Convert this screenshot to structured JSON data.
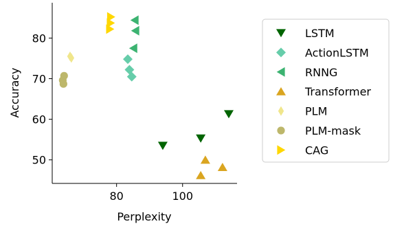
{
  "chart_data": {
    "type": "scatter",
    "xlabel": "Perplexity",
    "ylabel": "Accuracy",
    "xlim": [
      60.5,
      116.5
    ],
    "ylim": [
      44.2,
      88.7
    ],
    "x_ticks": [
      {
        "v": 80,
        "label": "80"
      },
      {
        "v": 100,
        "label": "100"
      }
    ],
    "y_ticks": [
      {
        "v": 50,
        "label": "50"
      },
      {
        "v": 60,
        "label": "60"
      },
      {
        "v": 70,
        "label": "70"
      },
      {
        "v": 80,
        "label": "80"
      }
    ],
    "legend_position": "right",
    "series": [
      {
        "name": "LSTM",
        "marker": "triangle-down",
        "color": "#006400",
        "points": [
          [
            94.0,
            53.5
          ],
          [
            105.5,
            55.3
          ],
          [
            114.0,
            61.3
          ]
        ]
      },
      {
        "name": "ActionLSTM",
        "marker": "diamond",
        "color": "#66cdaa",
        "points": [
          [
            83.4,
            74.8
          ],
          [
            83.9,
            72.2
          ],
          [
            84.6,
            70.5
          ]
        ]
      },
      {
        "name": "RNNG",
        "marker": "triangle-left",
        "color": "#3cb371",
        "points": [
          [
            85.5,
            84.4
          ],
          [
            85.7,
            81.8
          ],
          [
            85.1,
            77.5
          ]
        ]
      },
      {
        "name": "Transformer",
        "marker": "triangle-up",
        "color": "#daa520",
        "points": [
          [
            106.9,
            50.0
          ],
          [
            112.1,
            48.2
          ],
          [
            105.5,
            46.2
          ]
        ]
      },
      {
        "name": "PLM",
        "marker": "thin-diamond",
        "color": "#f0e68c",
        "points": [
          [
            65.9,
            75.5
          ],
          [
            66.3,
            75.1
          ]
        ]
      },
      {
        "name": "PLM-mask",
        "marker": "circle",
        "color": "#bdb76b",
        "points": [
          [
            64.1,
            70.7
          ],
          [
            63.7,
            69.6
          ],
          [
            63.9,
            68.7
          ]
        ]
      },
      {
        "name": "CAG",
        "marker": "triangle-right",
        "color": "#ffd700",
        "points": [
          [
            78.3,
            85.2
          ],
          [
            78.2,
            83.7
          ],
          [
            78.0,
            82.2
          ]
        ]
      }
    ]
  }
}
